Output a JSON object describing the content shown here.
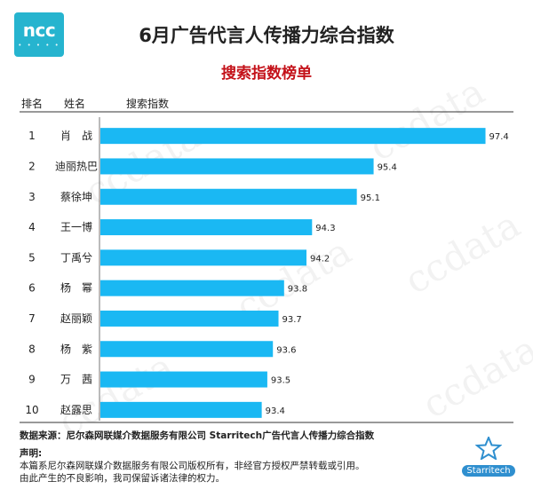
{
  "logo": {
    "text": "ncc"
  },
  "brand": {
    "primary": "#26b4cf",
    "bar": "#1ab8f3",
    "subtitle": "#c4121a"
  },
  "chart_data": {
    "type": "bar",
    "orientation": "horizontal",
    "title": "6月广告代言人传播力综合指数",
    "subtitle": "搜索指数榜单",
    "headers": {
      "rank": "排名",
      "name": "姓名",
      "value": "搜索指数"
    },
    "ranks": [
      "1",
      "2",
      "3",
      "4",
      "5",
      "6",
      "7",
      "8",
      "9",
      "10"
    ],
    "categories": [
      "肖　战",
      "迪丽热巴",
      "蔡徐坤",
      "王一博",
      "丁禹兮",
      "杨　幂",
      "赵丽颖",
      "杨　紫",
      "万　茜",
      "赵露思"
    ],
    "values": [
      97.4,
      95.4,
      95.1,
      94.3,
      94.2,
      93.8,
      93.7,
      93.6,
      93.5,
      93.4
    ],
    "xlim": [
      90.5,
      97.9
    ],
    "grid": false,
    "legend": "none"
  },
  "footer": {
    "source": "数据来源：尼尔森网联媒介数据服务有限公司 Starritech广告代言人传播力综合指数",
    "declaration_title": "声明:",
    "declaration_lines": [
      "本篇系尼尔森网联媒介数据服务有限公司版权所有，非经官方授权严禁转载或引用。",
      "由此产生的不良影响，我司保留诉诸法律的权力。"
    ]
  },
  "watermark": {
    "text": "ccdata"
  },
  "starritech": {
    "text": "Starritech"
  }
}
